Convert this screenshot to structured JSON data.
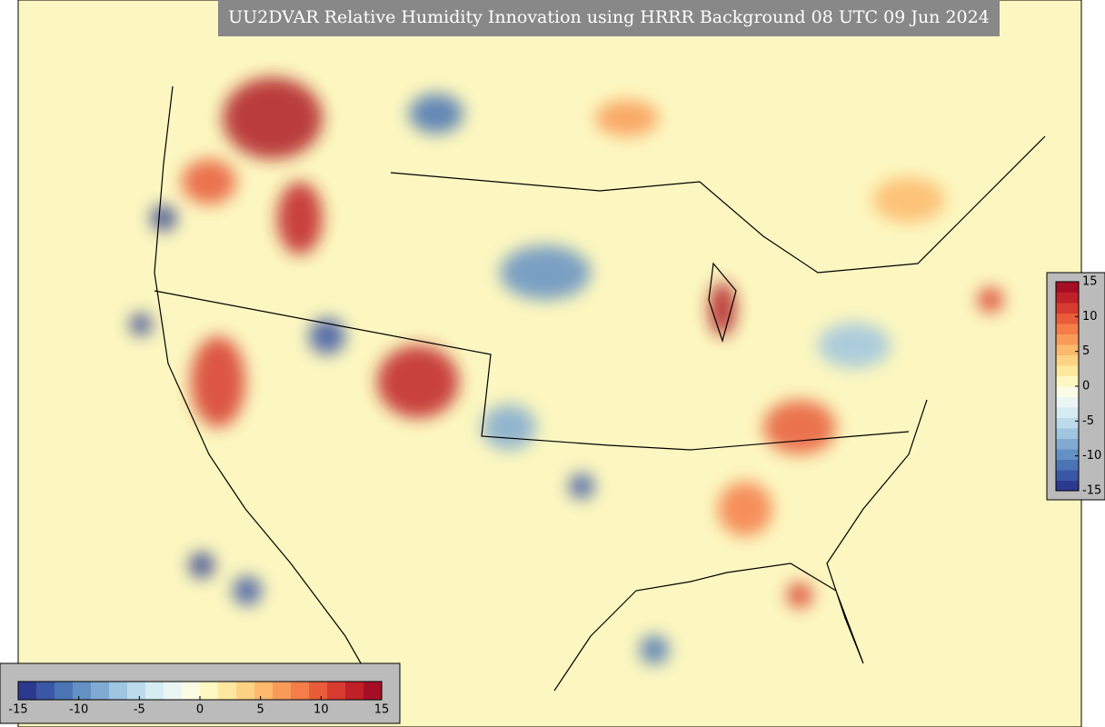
{
  "header": {
    "title": "UU2DVAR Relative Humidity Innovation using HRRR Background 08 UTC 09 Jun 2024"
  },
  "colorbar": {
    "lim": [
      -15,
      15
    ],
    "ticks": [
      -15,
      -10,
      -5,
      0,
      5,
      10,
      15
    ],
    "colors": [
      "#2b3a8f",
      "#3a57a5",
      "#4a74b4",
      "#6391c4",
      "#80aad2",
      "#9fc5e0",
      "#bcdaea",
      "#d6ebf2",
      "#ebf6f4",
      "#fbfbe6",
      "#fff7c2",
      "#fee8a0",
      "#fdd383",
      "#fdb96c",
      "#f99b58",
      "#f47d48",
      "#e85c3a",
      "#d73a2f",
      "#c02027",
      "#a50f26"
    ]
  }
}
